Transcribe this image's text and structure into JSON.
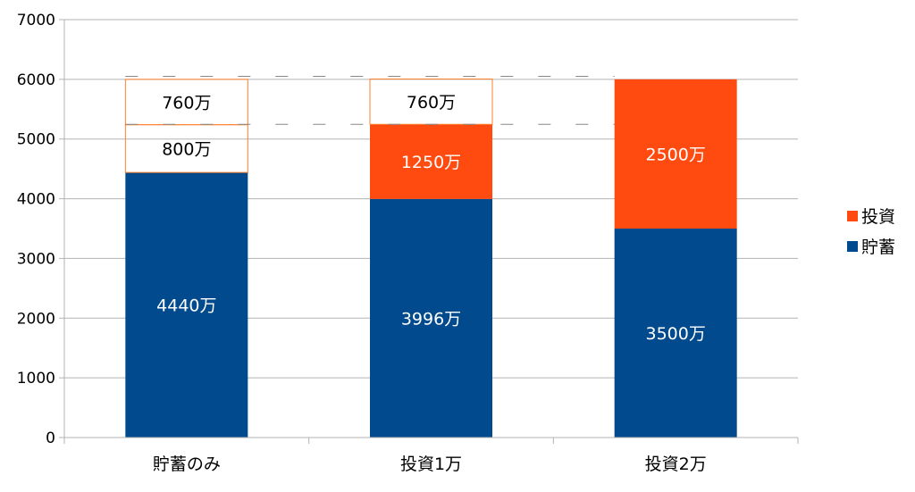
{
  "chart_data": {
    "type": "bar",
    "stacked": true,
    "categories": [
      "貯蓄のみ",
      "投資1万",
      "投資2万"
    ],
    "series": [
      {
        "name": "貯蓄",
        "color": "#004A8D",
        "values": [
          4440,
          3996,
          3500
        ],
        "labels": [
          "4440万",
          "3996万",
          "3500万"
        ]
      },
      {
        "name": "投資",
        "color": "#FF4A10",
        "values": [
          0,
          1250,
          2500
        ],
        "labels": [
          "",
          "1250万",
          "2500万"
        ]
      }
    ],
    "overlays": [
      {
        "category": "貯蓄のみ",
        "from": 4440,
        "to": 5240,
        "label": "800万"
      },
      {
        "category": "貯蓄のみ",
        "from": 5240,
        "to": 6000,
        "label": "760万"
      },
      {
        "category": "投資1万",
        "from": 5246,
        "to": 6006,
        "label": "760万"
      }
    ],
    "reference_lines": [
      5246,
      6050
    ],
    "ylim": [
      0,
      7000
    ],
    "yticks": [
      "0",
      "1000",
      "2000",
      "3000",
      "4000",
      "5000",
      "6000",
      "7000"
    ],
    "grid": true,
    "legend": "right",
    "title": "",
    "xlabel": "",
    "ylabel": ""
  }
}
